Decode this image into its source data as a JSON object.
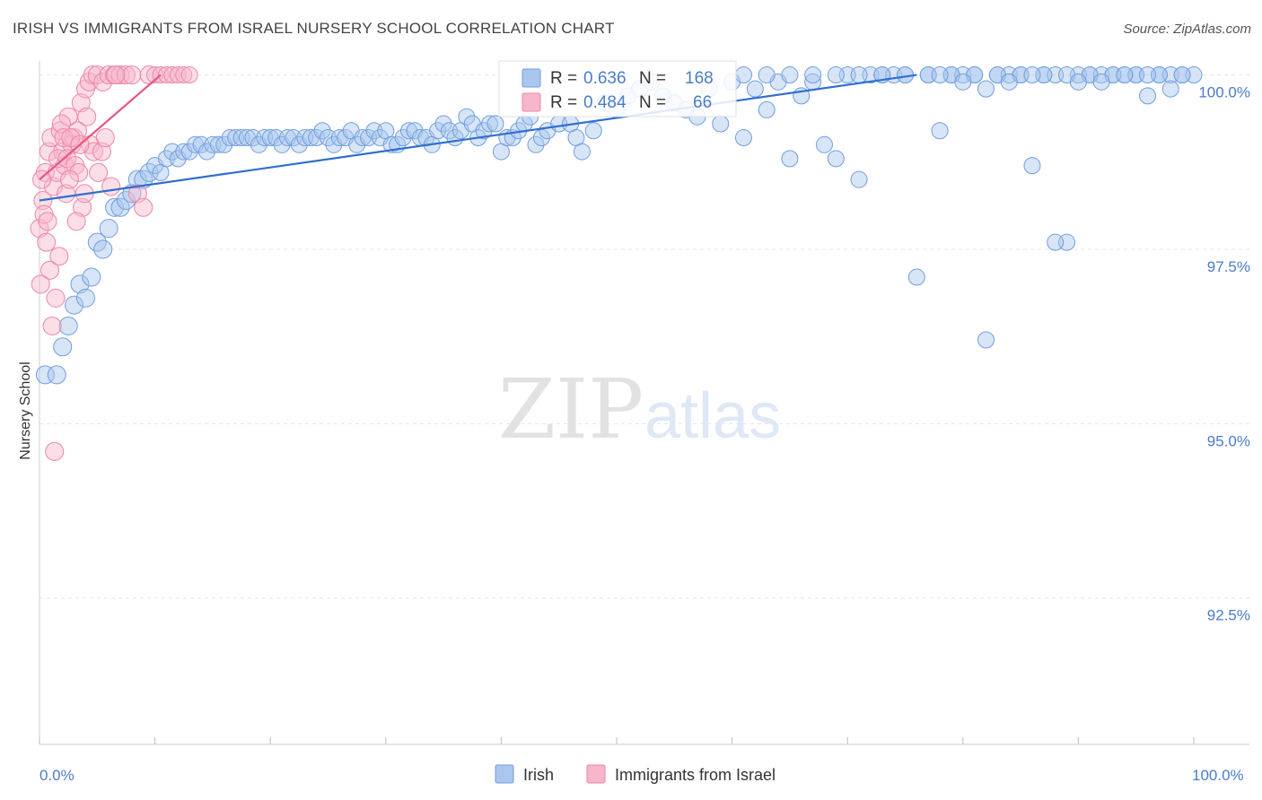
{
  "title": "IRISH VS IMMIGRANTS FROM ISRAEL NURSERY SCHOOL CORRELATION CHART",
  "source": "Source: ZipAtlas.com",
  "watermark": {
    "zip": "ZIP",
    "atlas": "atlas"
  },
  "legend": {
    "irish": {
      "r_label": "R =",
      "r_value": "0.636",
      "n_label": "N =",
      "n_value": "168"
    },
    "israel": {
      "r_label": "R =",
      "r_value": "0.484",
      "n_label": "N =",
      "n_value": "66"
    }
  },
  "colors": {
    "irish_fill": "#a9c6ee",
    "irish_stroke": "#6f9ee0",
    "irish_line": "#2f6fce",
    "israel_fill": "#f6b6cb",
    "israel_stroke": "#ee86a7",
    "israel_line": "#e6577f",
    "axis_label": "#4a7cc9",
    "grid": "#e6e6e6"
  },
  "chart_data": {
    "type": "scatter",
    "title": "IRISH VS IMMIGRANTS FROM ISRAEL NURSERY SCHOOL CORRELATION CHART",
    "xlabel": "",
    "ylabel": "Nursery School",
    "xlim": [
      0,
      100
    ],
    "ylim": [
      90.4,
      100.2
    ],
    "x_tick_labels": [
      "0.0%",
      "100.0%"
    ],
    "y_ticks": [
      {
        "value": 100.0,
        "label": "100.0%"
      },
      {
        "value": 97.5,
        "label": "97.5%"
      },
      {
        "value": 95.0,
        "label": "95.0%"
      },
      {
        "value": 92.5,
        "label": "92.5%"
      }
    ],
    "legend_position": "bottom-center",
    "series": [
      {
        "name": "Irish",
        "trend": [
          [
            0,
            98.2
          ],
          [
            76,
            100.0
          ]
        ],
        "points": [
          [
            0.5,
            95.7
          ],
          [
            1.5,
            95.7
          ],
          [
            2,
            96.1
          ],
          [
            2.5,
            96.4
          ],
          [
            3,
            96.7
          ],
          [
            3.5,
            97
          ],
          [
            4,
            96.8
          ],
          [
            4.5,
            97.1
          ],
          [
            5,
            97.6
          ],
          [
            5.5,
            97.5
          ],
          [
            6,
            97.8
          ],
          [
            6.5,
            98.1
          ],
          [
            7,
            98.1
          ],
          [
            7.5,
            98.2
          ],
          [
            8,
            98.3
          ],
          [
            8.5,
            98.5
          ],
          [
            9,
            98.5
          ],
          [
            9.5,
            98.6
          ],
          [
            10,
            98.7
          ],
          [
            10.5,
            98.6
          ],
          [
            11,
            98.8
          ],
          [
            11.5,
            98.9
          ],
          [
            12,
            98.8
          ],
          [
            12.5,
            98.9
          ],
          [
            13,
            98.9
          ],
          [
            13.5,
            99
          ],
          [
            14,
            99
          ],
          [
            14.5,
            98.9
          ],
          [
            15,
            99
          ],
          [
            15.5,
            99
          ],
          [
            16,
            99
          ],
          [
            16.5,
            99.1
          ],
          [
            17,
            99.1
          ],
          [
            17.5,
            99.1
          ],
          [
            18,
            99.1
          ],
          [
            18.5,
            99.1
          ],
          [
            19,
            99
          ],
          [
            19.5,
            99.1
          ],
          [
            20,
            99.1
          ],
          [
            20.5,
            99.1
          ],
          [
            21,
            99
          ],
          [
            21.5,
            99.1
          ],
          [
            22,
            99.1
          ],
          [
            22.5,
            99
          ],
          [
            23,
            99.1
          ],
          [
            23.5,
            99.1
          ],
          [
            24,
            99.1
          ],
          [
            24.5,
            99.2
          ],
          [
            25,
            99.1
          ],
          [
            25.5,
            99
          ],
          [
            26,
            99.1
          ],
          [
            26.5,
            99.1
          ],
          [
            27,
            99.2
          ],
          [
            27.5,
            99
          ],
          [
            28,
            99.1
          ],
          [
            28.5,
            99.1
          ],
          [
            29,
            99.2
          ],
          [
            29.5,
            99.1
          ],
          [
            30,
            99.2
          ],
          [
            30.5,
            99
          ],
          [
            31,
            99
          ],
          [
            31.5,
            99.1
          ],
          [
            32,
            99.2
          ],
          [
            32.5,
            99.2
          ],
          [
            33,
            99.1
          ],
          [
            33.5,
            99.1
          ],
          [
            34,
            99
          ],
          [
            34.5,
            99.2
          ],
          [
            35,
            99.3
          ],
          [
            35.5,
            99.2
          ],
          [
            36,
            99.1
          ],
          [
            36.5,
            99.2
          ],
          [
            37,
            99.4
          ],
          [
            37.5,
            99.3
          ],
          [
            38,
            99.1
          ],
          [
            38.5,
            99.2
          ],
          [
            39,
            99.3
          ],
          [
            39.5,
            99.3
          ],
          [
            40,
            98.9
          ],
          [
            40.5,
            99.1
          ],
          [
            41,
            99.1
          ],
          [
            41.5,
            99.2
          ],
          [
            42,
            99.3
          ],
          [
            42.5,
            99.4
          ],
          [
            43,
            99
          ],
          [
            43.5,
            99.1
          ],
          [
            44,
            99.2
          ],
          [
            45,
            99.3
          ],
          [
            46,
            99.3
          ],
          [
            46.5,
            99.1
          ],
          [
            47,
            98.9
          ],
          [
            48,
            99.2
          ],
          [
            49,
            99.6
          ],
          [
            50,
            99.5
          ],
          [
            51,
            99.7
          ],
          [
            52,
            99.8
          ],
          [
            53,
            99.9
          ],
          [
            54,
            99.7
          ],
          [
            55,
            99.6
          ],
          [
            56,
            99.5
          ],
          [
            57,
            99.4
          ],
          [
            58,
            99.8
          ],
          [
            59,
            99.3
          ],
          [
            60,
            99.9
          ],
          [
            61,
            99.1
          ],
          [
            62,
            99.8
          ],
          [
            63,
            99.5
          ],
          [
            64,
            99.9
          ],
          [
            65,
            98.8
          ],
          [
            66,
            99.7
          ],
          [
            67,
            99.9
          ],
          [
            68,
            99
          ],
          [
            69,
            98.8
          ],
          [
            70,
            100
          ],
          [
            71,
            98.5
          ],
          [
            72,
            100
          ],
          [
            73,
            100
          ],
          [
            74,
            100
          ],
          [
            75,
            100
          ],
          [
            76,
            97.1
          ],
          [
            77,
            100
          ],
          [
            78,
            99.2
          ],
          [
            79,
            100
          ],
          [
            80,
            100
          ],
          [
            81,
            100
          ],
          [
            82,
            96.2
          ],
          [
            83,
            100
          ],
          [
            84,
            100
          ],
          [
            85,
            100
          ],
          [
            86,
            98.7
          ],
          [
            87,
            100
          ],
          [
            88,
            100
          ],
          [
            89,
            97.6
          ],
          [
            90,
            100
          ],
          [
            91,
            100
          ],
          [
            92,
            100
          ],
          [
            93,
            100
          ],
          [
            94,
            100
          ],
          [
            95,
            100
          ],
          [
            96,
            99.7
          ],
          [
            97,
            100
          ],
          [
            98,
            100
          ],
          [
            99,
            100
          ],
          [
            100,
            100
          ],
          [
            61,
            100
          ],
          [
            63,
            100
          ],
          [
            65,
            100
          ],
          [
            67,
            100
          ],
          [
            69,
            100
          ],
          [
            71,
            100
          ],
          [
            73,
            100
          ],
          [
            75,
            100
          ],
          [
            77,
            100
          ],
          [
            79,
            100
          ],
          [
            81,
            100
          ],
          [
            83,
            100
          ],
          [
            85,
            100
          ],
          [
            87,
            100
          ],
          [
            89,
            100
          ],
          [
            91,
            100
          ],
          [
            93,
            100
          ],
          [
            95,
            100
          ],
          [
            97,
            100
          ],
          [
            99,
            100
          ],
          [
            88,
            97.6
          ],
          [
            90,
            99.9
          ],
          [
            92,
            99.9
          ],
          [
            94,
            100
          ],
          [
            96,
            100
          ],
          [
            98,
            99.8
          ],
          [
            84,
            99.9
          ],
          [
            86,
            100
          ],
          [
            82,
            99.8
          ],
          [
            80,
            99.9
          ],
          [
            78,
            100
          ]
        ]
      },
      {
        "name": "Immigrants from Israel",
        "trend": [
          [
            0,
            98.5
          ],
          [
            10.5,
            100.0
          ]
        ],
        "points": [
          [
            0,
            97.8
          ],
          [
            0.3,
            98.2
          ],
          [
            0.5,
            98.6
          ],
          [
            0.8,
            98.9
          ],
          [
            1,
            99.1
          ],
          [
            1.2,
            98.4
          ],
          [
            1.5,
            98.6
          ],
          [
            1.8,
            99.2
          ],
          [
            2,
            98.9
          ],
          [
            2.2,
            98.7
          ],
          [
            2.5,
            99.4
          ],
          [
            2.8,
            99
          ],
          [
            3,
            99.1
          ],
          [
            3.3,
            99.2
          ],
          [
            3.6,
            99.6
          ],
          [
            4,
            99.8
          ],
          [
            4.3,
            99.9
          ],
          [
            4.6,
            100
          ],
          [
            5,
            100
          ],
          [
            5.5,
            99.9
          ],
          [
            6,
            100
          ],
          [
            6.5,
            100
          ],
          [
            7,
            100
          ],
          [
            7.5,
            100
          ],
          [
            8,
            100
          ],
          [
            8.5,
            98.3
          ],
          [
            9,
            98.1
          ],
          [
            9.5,
            100
          ],
          [
            10,
            100
          ],
          [
            10.5,
            100
          ],
          [
            11,
            100
          ],
          [
            11.5,
            100
          ],
          [
            12,
            100
          ],
          [
            12.5,
            100
          ],
          [
            13,
            100
          ],
          [
            0.2,
            98.5
          ],
          [
            0.4,
            98
          ],
          [
            0.6,
            97.6
          ],
          [
            0.9,
            97.2
          ],
          [
            1.1,
            96.4
          ],
          [
            1.3,
            94.6
          ],
          [
            1.6,
            98.8
          ],
          [
            1.9,
            99.3
          ],
          [
            2.1,
            99.1
          ],
          [
            2.4,
            98.8
          ],
          [
            2.7,
            99.1
          ],
          [
            3.1,
            98.7
          ],
          [
            3.4,
            98.6
          ],
          [
            3.7,
            98.1
          ],
          [
            4.1,
            99.4
          ],
          [
            4.4,
            99
          ],
          [
            4.7,
            98.9
          ],
          [
            5.1,
            98.6
          ],
          [
            5.4,
            98.9
          ],
          [
            5.7,
            99.1
          ],
          [
            6.2,
            98.4
          ],
          [
            6.6,
            100
          ],
          [
            0.1,
            97
          ],
          [
            0.7,
            97.9
          ],
          [
            1.4,
            96.8
          ],
          [
            1.7,
            97.4
          ],
          [
            2.3,
            98.3
          ],
          [
            2.6,
            98.5
          ],
          [
            3.2,
            97.9
          ],
          [
            3.5,
            99
          ],
          [
            3.9,
            98.3
          ]
        ]
      }
    ]
  },
  "legend_bottom": {
    "irish": "Irish",
    "israel": "Immigrants from Israel"
  }
}
